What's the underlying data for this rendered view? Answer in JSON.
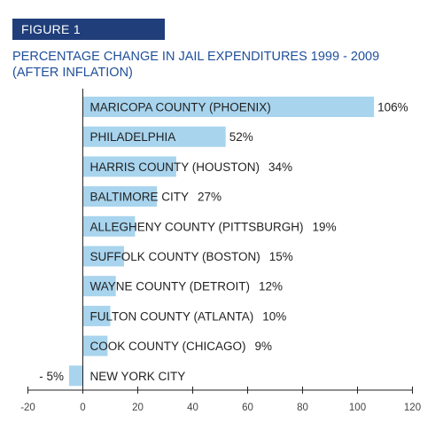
{
  "figure_label": "FIGURE 1",
  "chart_data": {
    "type": "bar",
    "orientation": "horizontal",
    "title": "PERCENTAGE CHANGE IN JAIL EXPENDITURES 1999 - 2009 (AFTER INFLATION)",
    "xlabel": "",
    "ylabel": "",
    "xlim": [
      -20,
      120
    ],
    "x_ticks": [
      "-20",
      "0",
      "20",
      "40",
      "60",
      "80",
      "100",
      "120"
    ],
    "bar_color": "#a8d4ee",
    "grid": false,
    "categories": [
      "MARICOPA COUNTY (PHOENIX)",
      "PHILADELPHIA",
      "HARRIS COUNTY (HOUSTON)",
      "BALTIMORE CITY",
      "ALLEGHENY COUNTY (PITTSBURGH)",
      "SUFFOLK COUNTY (BOSTON)",
      "WAYNE COUNTY (DETROIT)",
      "FULTON COUNTY (ATLANTA)",
      "COOK COUNTY (CHICAGO)",
      "NEW YORK CITY"
    ],
    "values": [
      106,
      52,
      34,
      27,
      19,
      15,
      12,
      10,
      9,
      -5
    ],
    "value_labels": [
      "106%",
      "52%",
      "34%",
      "27%",
      "19%",
      "15%",
      "12%",
      "10%",
      "9%",
      "- 5%"
    ]
  }
}
